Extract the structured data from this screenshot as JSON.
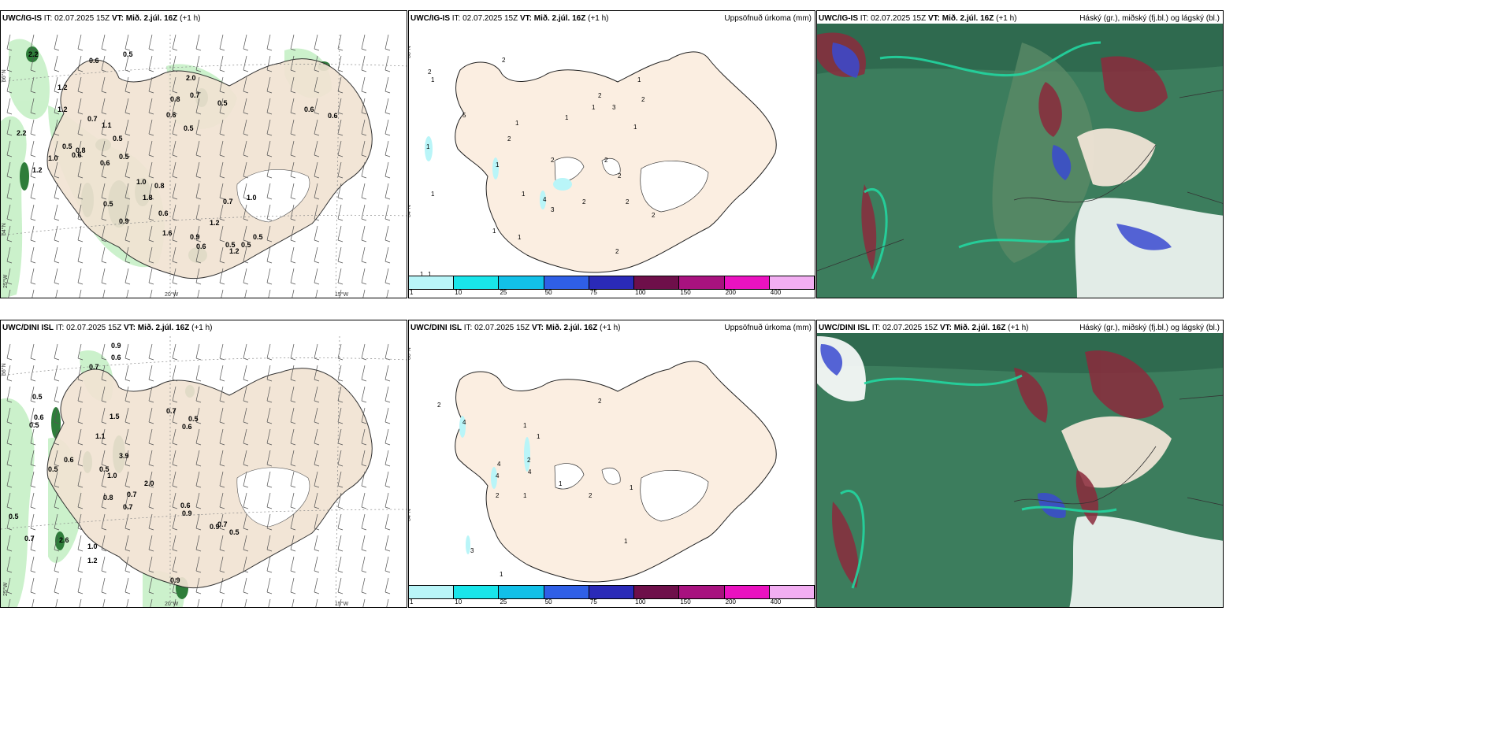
{
  "rows": [
    {
      "model": "UWC/IG-IS",
      "it_label": "IT:",
      "it_value": "02.07.2025 15Z",
      "vt_label": "VT:",
      "vt_value": "Mið. 2.júl. 16Z",
      "lead": "(+1 h)"
    },
    {
      "model": "UWC/DINI ISL",
      "it_label": "IT:",
      "it_value": "02.07.2025 15Z",
      "vt_label": "VT:",
      "vt_value": "Mið. 2.júl. 16Z",
      "lead": "(+1 h)"
    }
  ],
  "precip_title": "Uppsöfnuð úrkoma (mm)",
  "cloud_title": "Háský (gr.), miðský (fj.bl.) og lágský (bl.)",
  "colorbar": {
    "ticks": [
      "1",
      "10",
      "25",
      "50",
      "75",
      "100",
      "150",
      "200",
      "400"
    ],
    "colors": [
      "#b9f5f8",
      "#19e5ea",
      "#12c0e8",
      "#2f5fe6",
      "#2a2ab8",
      "#6e0f4a",
      "#a8127f",
      "#ea12c0",
      "#f2aef2"
    ]
  },
  "axis_labels": {
    "lat66": "66°N",
    "lat64": "64°N",
    "lon25": "25°W",
    "lon20": "20°W",
    "lon15": "15°W"
  },
  "panel1_top_values": [
    "2.2",
    "0.6",
    "0.5",
    "1.2",
    "1.2",
    "0.7",
    "1.1",
    "0.5",
    "0.8",
    "1.0",
    "0.6",
    "0.6",
    "0.5",
    "2.2",
    "1.2",
    "0.5",
    "2.0",
    "0.7",
    "0.8",
    "0.6",
    "0.5",
    "1.0",
    "1.8",
    "0.8",
    "0.5",
    "0.9",
    "0.6",
    "1.2",
    "0.7",
    "1.0",
    "1.2",
    "1.6",
    "0.9",
    "0.6",
    "0.5",
    "0.5",
    "0.5",
    "0.5",
    "0.6",
    "0.6"
  ],
  "panel1_bottom_values": [
    "0.9",
    "0.6",
    "0.7",
    "0.5",
    "0.6",
    "0.5",
    "1.5",
    "1.1",
    "3.9",
    "0.6",
    "0.5",
    "0.5",
    "1.0",
    "0.7",
    "0.7",
    "0.8",
    "0.6",
    "0.9",
    "2.0",
    "0.7",
    "0.9",
    "0.7",
    "0.5",
    "0.6",
    "0.5",
    "0.7",
    "0.5",
    "2.6",
    "1.0",
    "1.2",
    "0.9"
  ],
  "panel2_top_values": [
    "2",
    "2",
    "1",
    "5",
    "1",
    "1",
    "1",
    "2",
    "1",
    "1",
    "1",
    "2",
    "3",
    "1",
    "2",
    "1",
    "2",
    "2",
    "2",
    "4",
    "3",
    "2",
    "2",
    "1",
    "1",
    "1",
    "1",
    "1",
    "2",
    "2"
  ],
  "panel2_bottom_values": [
    "2",
    "2",
    "4",
    "1",
    "1",
    "2",
    "4",
    "4",
    "2",
    "4",
    "1",
    "1",
    "2",
    "1",
    "1",
    "3",
    "1"
  ]
}
